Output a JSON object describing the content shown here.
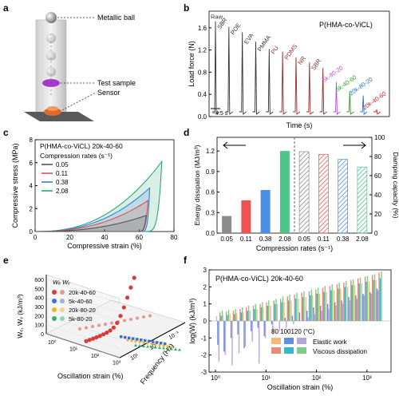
{
  "panels": {
    "a": "a",
    "b": "b",
    "c": "c",
    "d": "d",
    "e": "e",
    "f": "f"
  },
  "panel_a": {
    "labels": [
      "Metallic ball",
      "Test sample",
      "Sensor"
    ]
  },
  "chart_data": [
    {
      "id": "b",
      "type": "line",
      "title": "P(HMA-co-ViCL)",
      "xlabel": "Time (s)",
      "ylabel": "Load force (N)",
      "ylim": [
        0,
        1.9
      ],
      "yticks": [
        0.0,
        0.4,
        0.8,
        1.2,
        1.6
      ],
      "time_annotation": "~4.5 s",
      "series": [
        {
          "name": "Raw",
          "peak": 1.72,
          "color": "#333333"
        },
        {
          "name": "SBR",
          "peak": 1.62,
          "color": "#333333"
        },
        {
          "name": "POE",
          "peak": 1.52,
          "color": "#333333"
        },
        {
          "name": "EVA",
          "peak": 1.35,
          "color": "#333333"
        },
        {
          "name": "PMMA",
          "peak": 1.22,
          "color": "#333333"
        },
        {
          "name": "PU",
          "peak": 1.17,
          "color": "#9b2a2a"
        },
        {
          "name": "PDMS",
          "peak": 1.07,
          "color": "#9b2a2a"
        },
        {
          "name": "NR",
          "peak": 0.98,
          "color": "#9b2a2a"
        },
        {
          "name": "SBR",
          "peak": 0.88,
          "color": "#9b2a2a"
        },
        {
          "name": "5k-80-20",
          "peak": 0.62,
          "color": "#b44fd6"
        },
        {
          "name": "5k-40-60",
          "peak": 0.45,
          "color": "#2ca02c"
        },
        {
          "name": "20k-80-20",
          "peak": 0.38,
          "color": "#1f77d4"
        },
        {
          "name": "20k-40-60",
          "peak": 0.12,
          "color": "#e02020"
        }
      ]
    },
    {
      "id": "c",
      "type": "line",
      "title": "P(HMA-co-ViCL) 20k-40-60",
      "legend_title": "Compression rates (s⁻¹)",
      "xlabel": "Compressive strain (%)",
      "ylabel": "Compressive stress (MPa)",
      "xlim": [
        0,
        80
      ],
      "ylim": [
        0,
        8
      ],
      "xticks": [
        0,
        20,
        40,
        60,
        80
      ],
      "yticks": [
        0,
        2,
        4,
        6,
        8
      ],
      "series": [
        {
          "name": "0.05",
          "color": "#555555",
          "max_strain": 64,
          "max_stress": 1.4,
          "end_strain": 58
        },
        {
          "name": "0.11",
          "color": "#d9534f",
          "max_strain": 65,
          "max_stress": 2.7,
          "end_strain": 58
        },
        {
          "name": "0.38",
          "color": "#3a7fd5",
          "max_strain": 66,
          "max_stress": 3.8,
          "end_strain": 60
        },
        {
          "name": "2.08",
          "color": "#2aa876",
          "max_strain": 73,
          "max_stress": 6.1,
          "end_strain": 61
        }
      ]
    },
    {
      "id": "d",
      "type": "bar",
      "xlabel": "Compression rates (s⁻¹)",
      "ylabel_left": "Energy dissipation (MJ/m³)",
      "ylabel_right": "Damping capacity (%)",
      "ylim_left": [
        0,
        1.4
      ],
      "ylim_right": [
        0,
        100
      ],
      "yticks_left": [
        0.0,
        0.3,
        0.6,
        0.9,
        1.2
      ],
      "yticks_right": [
        0,
        20,
        40,
        60,
        80,
        100
      ],
      "categories": [
        "0.05",
        "0.11",
        "0.38",
        "2.08",
        "0.05",
        "0.11",
        "0.38",
        "2.08"
      ],
      "energy": [
        0.25,
        0.48,
        0.63,
        1.2
      ],
      "damping": [
        85,
        82,
        77,
        69
      ],
      "colors": [
        "#8c8c8c",
        "#ef5350",
        "#4a8fe7",
        "#4cc48a"
      ]
    },
    {
      "id": "e",
      "type": "scatter",
      "xlabel": "Oscillation strain (%)",
      "ylabel": "Wₑ, Wᵥ (kJ/m³)",
      "zlabel": "Frequency (Hz)",
      "legend_header": "Wₑ  Wᵥ",
      "yticks": [
        0,
        100,
        200,
        300,
        400,
        500,
        600
      ],
      "xticks": [
        "10⁰",
        "10¹",
        "10²",
        "10³"
      ],
      "zticks": [
        "10¹",
        "10⁰",
        "10⁻¹"
      ],
      "series": [
        {
          "name": "20k-40-60",
          "color": "#d93a3a",
          "marker": "sphere"
        },
        {
          "name": "5k-40-60",
          "color": "#3b6fd8",
          "marker": "square"
        },
        {
          "name": "20k-80-20",
          "color": "#f0b429",
          "marker": "star"
        },
        {
          "name": "5k-80-20",
          "color": "#2fb36a",
          "marker": "triangle"
        }
      ],
      "main_series_values": [
        5,
        6,
        7,
        8,
        10,
        14,
        20,
        30,
        50,
        90,
        160,
        250,
        360,
        480,
        600
      ]
    },
    {
      "id": "f",
      "type": "bar",
      "title": "P(HMA-co-ViCL) 20k-40-60",
      "xlabel": "Oscillation strain (%)",
      "ylabel": "log(W) (kJ/m³)",
      "ylim": [
        -3,
        3
      ],
      "yticks": [
        -3,
        -2,
        -1,
        0,
        1,
        2,
        3
      ],
      "xticks": [
        "10⁰",
        "10¹",
        "10²",
        "10³"
      ],
      "legend_temps": "80  100120 (°C)",
      "legend_items": [
        "Elastic work",
        "Viscous dissipation"
      ],
      "colors_elastic": [
        "#f2b97a",
        "#5f8fe0",
        "#b8a6d9"
      ],
      "colors_viscous": [
        "#e88a7a",
        "#35b8c9",
        "#7dcf86"
      ],
      "strain_x": [
        1.2,
        1.6,
        2.2,
        3,
        4,
        5.5,
        7.5,
        10,
        14,
        19,
        26,
        36,
        50,
        70,
        95,
        130,
        180,
        250,
        340,
        470,
        650,
        900,
        1250,
        1700
      ],
      "elastic_80": [
        0.3,
        0.35,
        0.4,
        0.45,
        0.5,
        0.6,
        0.7,
        0.8,
        0.9,
        1.0,
        1.1,
        1.2,
        1.3,
        1.4,
        1.5,
        1.6,
        1.7,
        1.8,
        1.9,
        2.0,
        2.1,
        2.2,
        2.3,
        2.4
      ],
      "elastic_100": [
        -1.4,
        -1.8,
        -1.0,
        -0.8,
        -1.6,
        -0.6,
        -0.4,
        -0.9,
        -0.2,
        0.0,
        0.2,
        0.3,
        0.5,
        0.6,
        0.8,
        0.9,
        1.0,
        1.1,
        1.2,
        1.4,
        1.5,
        1.6,
        1.7,
        1.9
      ],
      "elastic_120": [
        -2.4,
        -2.0,
        -2.6,
        -1.9,
        -1.5,
        -1.2,
        -2.5,
        -1.0,
        -0.8,
        -0.6,
        -0.4,
        -0.2,
        0.0,
        0.2,
        0.4,
        0.6,
        0.7,
        0.9,
        1.0,
        1.2,
        1.3,
        1.5,
        1.6,
        1.8
      ],
      "viscous_80": [
        0.5,
        0.55,
        0.6,
        0.7,
        0.8,
        0.9,
        1.0,
        1.1,
        1.2,
        1.3,
        1.45,
        1.55,
        1.65,
        1.75,
        1.85,
        1.95,
        2.05,
        2.15,
        2.25,
        2.4,
        2.5,
        2.6,
        2.7,
        2.85
      ],
      "viscous_100": [
        0.3,
        0.35,
        0.4,
        0.5,
        0.6,
        0.7,
        0.8,
        0.9,
        1.0,
        1.1,
        1.2,
        1.3,
        1.4,
        1.5,
        1.6,
        1.7,
        1.8,
        1.9,
        2.0,
        2.1,
        2.2,
        2.3,
        2.4,
        2.5
      ],
      "viscous_120": [
        0.6,
        0.65,
        0.7,
        0.8,
        0.9,
        1.0,
        1.1,
        1.2,
        1.3,
        1.45,
        1.55,
        1.65,
        1.75,
        1.85,
        1.95,
        2.05,
        2.15,
        2.25,
        2.35,
        2.45,
        2.55,
        2.65,
        2.75,
        2.9
      ]
    }
  ]
}
